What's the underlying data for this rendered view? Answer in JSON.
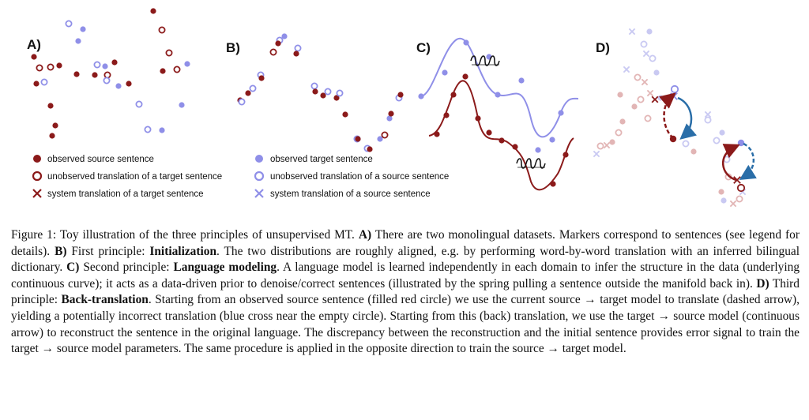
{
  "colors": {
    "source": "#8b1a1a",
    "target": "#8f8fe8",
    "source_light": "#e2b5b5",
    "target_light": "#c9c9f2",
    "arrow_blue": "#2a6ea8"
  },
  "panels": {
    "a": "A)",
    "b": "B)",
    "c": "C)",
    "d": "D)"
  },
  "legend": {
    "observed_source": "observed source sentence",
    "unobserved_target_translation": "unobserved translation of a target sentence",
    "system_target_translation": "system translation of a target sentence",
    "observed_target": "observed target sentence",
    "unobserved_source_translation": "unobserved  translation of a source sentence",
    "system_source_translation": "system translation of a source sentence"
  },
  "icons": [
    "spring-icon",
    "cross-marker-icon",
    "filled-circle-marker-icon",
    "hollow-circle-marker-icon"
  ],
  "caption": {
    "fig_label": "Figure 1:",
    "intro": " Toy illustration of the three principles of unsupervised MT. ",
    "a_label": "A)",
    "a_text": " There are two monolingual datasets.  Markers correspond to sentences (see legend for details). ",
    "b_label": "B)",
    "b_text1": " First principle: ",
    "b_bold": "Initialization",
    "b_text2": ". The two distributions are roughly aligned, e.g. by performing word-by-word translation with an inferred bilingual dictionary. ",
    "c_label": "C)",
    "c_text1": " Second principle: ",
    "c_bold": "Language modeling",
    "c_text2": ". A language model is learned independently in each domain to infer the structure in the data (underlying continuous curve); it acts as a data-driven prior to denoise/correct sentences (illustrated by the spring pulling a sentence outside the manifold back in). ",
    "d_label": "D)",
    "d_text1": " Third principle: ",
    "d_bold": "Back-translation",
    "d_text2": ". Starting from an observed source sentence (filled red circle) we use the current source → target model to translate (dashed arrow), yielding a potentially incorrect translation (blue cross near the empty circle). Starting from this (back) translation, we use the target → source model (continuous arrow) to reconstruct the sentence in the original language. The discrepancy between the reconstruction and the initial sentence provides error signal to train the target → source model parameters. The same procedure is applied in the opposite direction to train the source → target model."
  }
}
